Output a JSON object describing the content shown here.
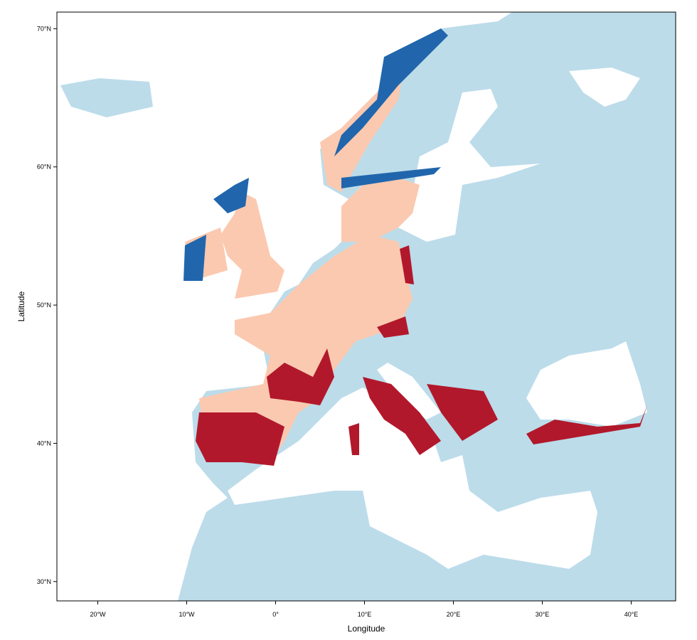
{
  "map": {
    "xlabel": "Longitude",
    "ylabel": "Latitude",
    "xlim": [
      -24.6,
      45
    ],
    "ylim": [
      28.6,
      71.2
    ],
    "xticks": [
      {
        "value": -20,
        "label": "20°W"
      },
      {
        "value": -10,
        "label": "10°W"
      },
      {
        "value": 0,
        "label": "0°"
      },
      {
        "value": 10,
        "label": "10°E"
      },
      {
        "value": 20,
        "label": "20°E"
      },
      {
        "value": 30,
        "label": "30°E"
      },
      {
        "value": 40,
        "label": "40°E"
      }
    ],
    "yticks": [
      {
        "value": 30,
        "label": "30°N"
      },
      {
        "value": 40,
        "label": "40°N"
      },
      {
        "value": 50,
        "label": "50°N"
      },
      {
        "value": 60,
        "label": "60°N"
      },
      {
        "value": 70,
        "label": "70°N"
      }
    ]
  }
}
